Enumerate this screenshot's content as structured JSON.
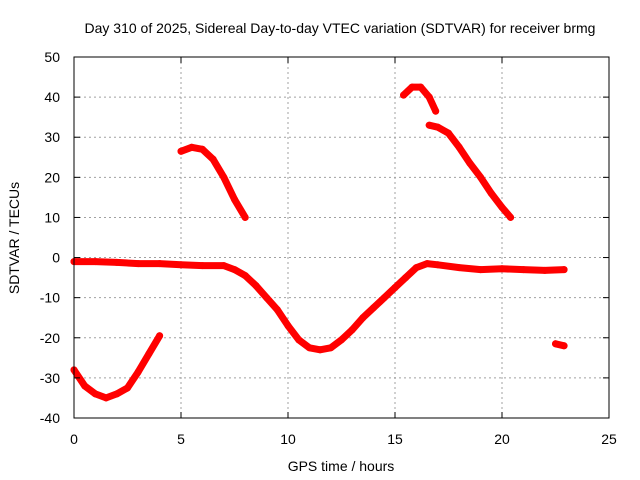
{
  "chart_data": {
    "type": "scatter",
    "title": "Day 310 of 2025, Sidereal Day-to-day VTEC variation (SDTVAR) for receiver brmg",
    "xlabel": "GPS time / hours",
    "ylabel": "SDTVAR / TECUs",
    "xlim": [
      0,
      25
    ],
    "ylim": [
      -40,
      50
    ],
    "xticks": [
      0,
      5,
      10,
      15,
      20,
      25
    ],
    "yticks": [
      -40,
      -30,
      -20,
      -10,
      0,
      10,
      20,
      30,
      40,
      50
    ],
    "grid": true,
    "legend": "none",
    "series_color": "#ff0000",
    "series": [
      {
        "name": "main-band",
        "points": [
          [
            0.0,
            -1.0
          ],
          [
            1.0,
            -1.0
          ],
          [
            2.0,
            -1.2
          ],
          [
            3.0,
            -1.5
          ],
          [
            4.0,
            -1.5
          ],
          [
            5.0,
            -1.8
          ],
          [
            6.0,
            -2.0
          ],
          [
            7.0,
            -2.0
          ],
          [
            7.5,
            -3.0
          ],
          [
            8.0,
            -4.5
          ],
          [
            8.5,
            -7.0
          ],
          [
            9.0,
            -10.0
          ],
          [
            9.5,
            -13.0
          ],
          [
            10.0,
            -17.0
          ],
          [
            10.5,
            -20.5
          ],
          [
            11.0,
            -22.5
          ],
          [
            11.5,
            -23.0
          ],
          [
            12.0,
            -22.5
          ],
          [
            12.5,
            -20.5
          ],
          [
            13.0,
            -18.0
          ],
          [
            13.5,
            -15.0
          ],
          [
            14.0,
            -12.5
          ],
          [
            14.5,
            -10.0
          ],
          [
            15.0,
            -7.5
          ],
          [
            15.5,
            -5.0
          ],
          [
            16.0,
            -2.5
          ],
          [
            16.5,
            -1.5
          ],
          [
            17.0,
            -1.8
          ],
          [
            18.0,
            -2.5
          ],
          [
            19.0,
            -3.0
          ],
          [
            20.0,
            -2.8
          ],
          [
            21.0,
            -3.0
          ],
          [
            22.0,
            -3.2
          ],
          [
            22.9,
            -3.0
          ]
        ]
      },
      {
        "name": "arc-early",
        "points": [
          [
            0.0,
            -28.0
          ],
          [
            0.5,
            -32.0
          ],
          [
            1.0,
            -34.0
          ],
          [
            1.5,
            -35.0
          ],
          [
            2.0,
            -34.0
          ],
          [
            2.5,
            -32.5
          ],
          [
            3.0,
            -28.5
          ],
          [
            3.5,
            -24.0
          ],
          [
            4.0,
            -19.5
          ]
        ]
      },
      {
        "name": "arc-morning",
        "points": [
          [
            5.0,
            26.5
          ],
          [
            5.5,
            27.5
          ],
          [
            6.0,
            27.0
          ],
          [
            6.5,
            24.5
          ],
          [
            7.0,
            20.0
          ],
          [
            7.5,
            14.5
          ],
          [
            8.0,
            10.0
          ]
        ]
      },
      {
        "name": "arc-afternoon-high",
        "points": [
          [
            15.4,
            40.5
          ],
          [
            15.8,
            42.5
          ],
          [
            16.2,
            42.5
          ],
          [
            16.6,
            40.0
          ],
          [
            16.9,
            36.5
          ]
        ]
      },
      {
        "name": "arc-afternoon",
        "points": [
          [
            16.6,
            33.0
          ],
          [
            17.0,
            32.5
          ],
          [
            17.5,
            31.0
          ],
          [
            18.0,
            27.5
          ],
          [
            18.5,
            23.5
          ],
          [
            19.0,
            20.0
          ],
          [
            19.5,
            16.0
          ],
          [
            20.0,
            12.5
          ],
          [
            20.4,
            10.0
          ]
        ]
      },
      {
        "name": "arc-late",
        "points": [
          [
            22.5,
            -21.5
          ],
          [
            22.9,
            -22.0
          ]
        ]
      }
    ]
  }
}
